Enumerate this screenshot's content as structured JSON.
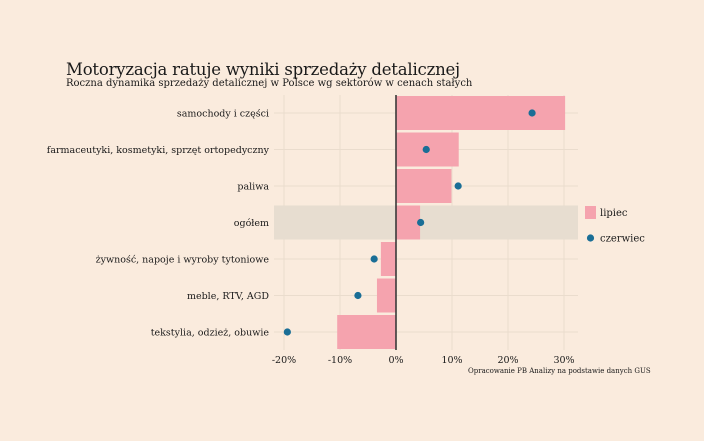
{
  "title": "Motoryzacja ratuje wyniki sprzedaży detalicznej",
  "subtitle": "Roczna dynamika sprzedaży detalicznej w Polsce wg sektorów w cenach stałych",
  "caption": "Opracowanie PB Analizy na podstawie danych GUS",
  "colors": {
    "background": "#faebdd",
    "bar": "#f5a3ae",
    "dot": "#1a6e96",
    "highlight_band": "#e7ddd0",
    "grid": "#eadccd"
  },
  "chart_data": {
    "type": "bar",
    "orientation": "horizontal",
    "categories": [
      "samochody i części",
      "farmaceutyki, kosmetyki, sprzęt ortopedyczny",
      "paliwa",
      "ogółem",
      "żywność, napoje i wyroby tytoniowe",
      "meble, RTV, AGD",
      "tekstylia, odzież, obuwie"
    ],
    "highlighted_category": "ogółem",
    "series": [
      {
        "name": "lipiec",
        "mark": "bar",
        "values": [
          30.2,
          11.2,
          9.9,
          4.3,
          -2.7,
          -3.4,
          -10.5
        ]
      },
      {
        "name": "czerwiec",
        "mark": "dot",
        "values": [
          24.3,
          5.4,
          11.1,
          4.4,
          -3.9,
          -6.8,
          -19.4
        ]
      }
    ],
    "x_ticks": [
      -20,
      -10,
      0,
      10,
      20,
      30
    ],
    "x_tick_labels": [
      "-20%",
      "-10%",
      "0%",
      "10%",
      "20%",
      "30%"
    ],
    "xlim": [
      -22,
      32.5
    ],
    "grid": true,
    "legend_position": "right"
  }
}
